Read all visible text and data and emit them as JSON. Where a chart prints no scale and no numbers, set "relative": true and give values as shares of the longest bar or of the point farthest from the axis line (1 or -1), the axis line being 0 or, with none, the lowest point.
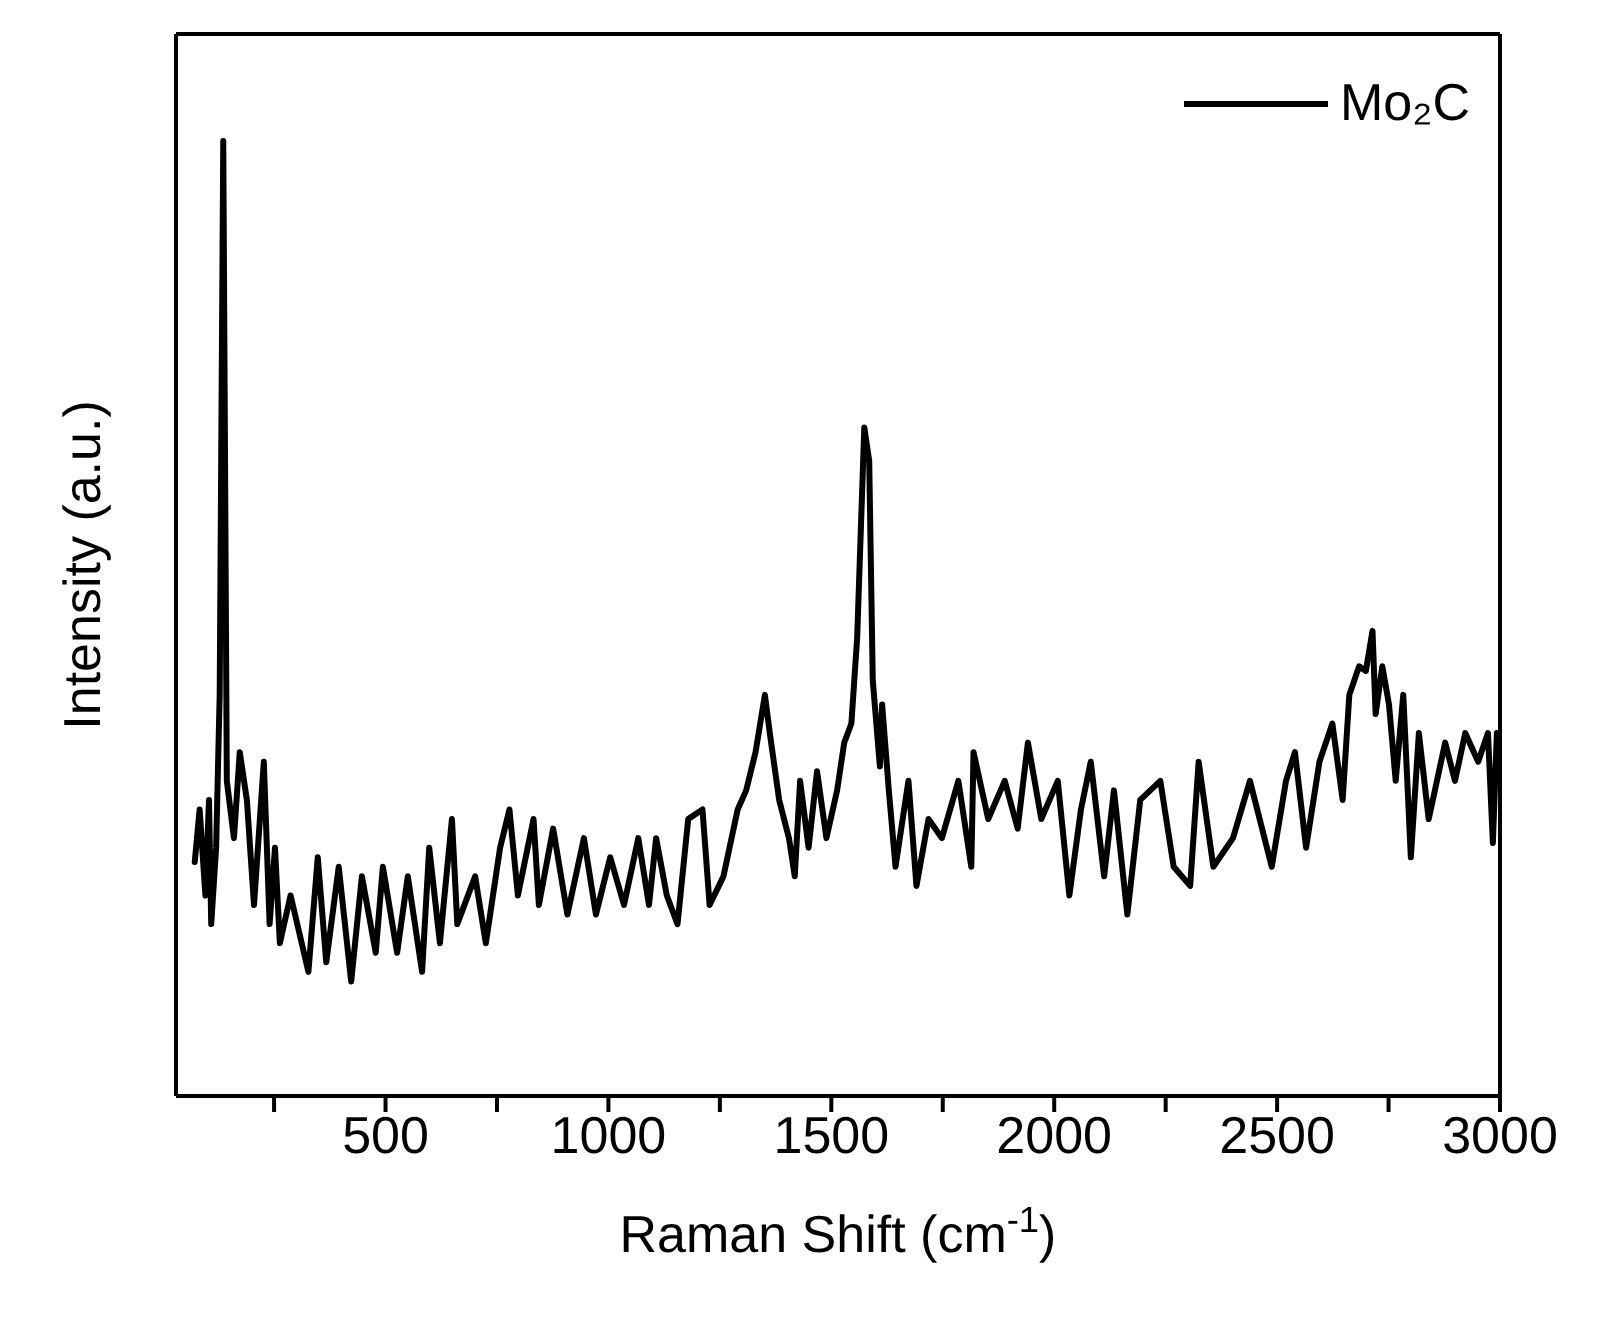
{
  "chart_data": {
    "type": "line",
    "relative": true,
    "xlabel": "Raman Shift (cm$^{-1}$)",
    "ylabel": "Intensity (a.u.)",
    "xlim": [
      30,
      3000
    ],
    "xticks": [
      {
        "value": 250,
        "label": null
      },
      500,
      {
        "value": 750,
        "label": null
      },
      1000,
      {
        "value": 1250,
        "label": null
      },
      1500,
      {
        "value": 1750,
        "label": null
      },
      2000,
      {
        "value": 2250,
        "label": null
      },
      2500,
      {
        "value": 2750,
        "label": null
      },
      3000
    ],
    "legend": "top right",
    "marker": "none",
    "line_style": "solid",
    "series": [
      {
        "name": "Mo₂C",
        "color": "#000000",
        "x": [
          72,
          83,
          96,
          104,
          109,
          120,
          128,
          136,
          144,
          160,
          173,
          189,
          205,
          227,
          240,
          252,
          263,
          287,
          327,
          348,
          367,
          395,
          423,
          447,
          478,
          494,
          526,
          550,
          582,
          598,
          622,
          649,
          661,
          701,
          725,
          757,
          778,
          797,
          832,
          844,
          876,
          908,
          945,
          972,
          1004,
          1035,
          1067,
          1091,
          1107,
          1131,
          1155,
          1179,
          1211,
          1227,
          1258,
          1290,
          1309,
          1330,
          1351,
          1362,
          1383,
          1405,
          1418,
          1430,
          1449,
          1468,
          1489,
          1513,
          1529,
          1545,
          1558,
          1574,
          1585,
          1593,
          1609,
          1614,
          1629,
          1644,
          1673,
          1691,
          1718,
          1748,
          1785,
          1814,
          1819,
          1852,
          1889,
          1918,
          1941,
          1971,
          2008,
          2034,
          2060,
          2082,
          2112,
          2134,
          2164,
          2193,
          2238,
          2268,
          2305,
          2324,
          2357,
          2401,
          2439,
          2488,
          2520,
          2540,
          2565,
          2595,
          2624,
          2647,
          2662,
          2684,
          2699,
          2714,
          2721,
          2736,
          2751,
          2766,
          2783,
          2800,
          2818,
          2840,
          2877,
          2899,
          2922,
          2951,
          2973,
          2984,
          2993
        ],
        "values": [
          0.245,
          0.3,
          0.21,
          0.31,
          0.18,
          0.26,
          0.42,
          1.0,
          0.33,
          0.27,
          0.36,
          0.31,
          0.2,
          0.35,
          0.18,
          0.26,
          0.16,
          0.21,
          0.13,
          0.25,
          0.14,
          0.24,
          0.12,
          0.23,
          0.15,
          0.24,
          0.15,
          0.23,
          0.13,
          0.26,
          0.16,
          0.29,
          0.18,
          0.23,
          0.16,
          0.26,
          0.3,
          0.21,
          0.29,
          0.2,
          0.28,
          0.19,
          0.27,
          0.19,
          0.25,
          0.2,
          0.27,
          0.2,
          0.27,
          0.21,
          0.18,
          0.29,
          0.3,
          0.2,
          0.23,
          0.3,
          0.32,
          0.36,
          0.42,
          0.38,
          0.31,
          0.27,
          0.23,
          0.33,
          0.26,
          0.34,
          0.27,
          0.32,
          0.37,
          0.39,
          0.48,
          0.7,
          0.665,
          0.435,
          0.345,
          0.41,
          0.32,
          0.24,
          0.33,
          0.22,
          0.29,
          0.27,
          0.33,
          0.24,
          0.36,
          0.29,
          0.33,
          0.28,
          0.37,
          0.29,
          0.33,
          0.21,
          0.3,
          0.35,
          0.23,
          0.32,
          0.19,
          0.31,
          0.33,
          0.24,
          0.22,
          0.35,
          0.24,
          0.27,
          0.33,
          0.24,
          0.33,
          0.36,
          0.26,
          0.35,
          0.39,
          0.31,
          0.42,
          0.45,
          0.445,
          0.487,
          0.4,
          0.45,
          0.41,
          0.33,
          0.42,
          0.25,
          0.38,
          0.29,
          0.37,
          0.33,
          0.38,
          0.35,
          0.38,
          0.265,
          0.38
        ]
      }
    ]
  }
}
